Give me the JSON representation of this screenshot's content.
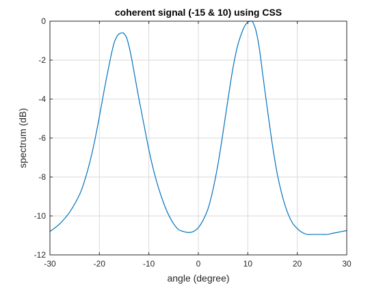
{
  "chart_data": {
    "type": "line",
    "title": "coherent signal (-15 & 10) using CSS",
    "xlabel": "angle (degree)",
    "ylabel": "spectrum (dB)",
    "xlim": [
      -30,
      30
    ],
    "ylim": [
      -12,
      0
    ],
    "xticks": [
      -30,
      -20,
      -10,
      0,
      10,
      20,
      30
    ],
    "yticks": [
      0,
      -2,
      -4,
      -6,
      -8,
      -10,
      -12
    ],
    "xtick_labels": [
      "-30",
      "-20",
      "-10",
      "0",
      "10",
      "20",
      "30"
    ],
    "ytick_labels": [
      "0",
      "-2",
      "-4",
      "-6",
      "-8",
      "-10",
      "-12"
    ],
    "grid": true,
    "line_color": "#0072BD",
    "series": [
      {
        "x": [
          -30,
          -28,
          -26,
          -24,
          -23,
          -22,
          -21,
          -20,
          -19,
          -18,
          -17.5,
          -17,
          -16.5,
          -16,
          -15.5,
          -15.2,
          -15,
          -14.5,
          -14,
          -13.5,
          -13,
          -12,
          -11,
          -10,
          -9,
          -8,
          -7,
          -6,
          -5,
          -4,
          -3,
          -2,
          -1,
          0,
          1,
          2,
          3,
          4,
          5,
          6,
          7,
          8,
          9,
          9.5,
          10,
          10.5,
          10.8,
          11,
          11.5,
          12,
          12.5,
          13,
          14,
          15,
          16,
          17,
          18,
          19,
          20,
          21,
          22,
          23,
          24,
          25,
          26,
          27,
          28,
          29,
          30
        ],
        "y": [
          -10.8,
          -10.4,
          -9.8,
          -8.9,
          -8.2,
          -7.3,
          -6.2,
          -4.9,
          -3.5,
          -2.2,
          -1.6,
          -1.1,
          -0.8,
          -0.65,
          -0.6,
          -0.6,
          -0.65,
          -0.85,
          -1.3,
          -1.9,
          -2.6,
          -4.0,
          -5.3,
          -6.6,
          -7.7,
          -8.6,
          -9.35,
          -9.95,
          -10.4,
          -10.7,
          -10.8,
          -10.85,
          -10.8,
          -10.6,
          -10.2,
          -9.6,
          -8.6,
          -7.3,
          -5.7,
          -4.0,
          -2.4,
          -1.2,
          -0.45,
          -0.2,
          -0.05,
          0.0,
          0.0,
          -0.05,
          -0.35,
          -0.9,
          -1.7,
          -2.7,
          -4.6,
          -6.4,
          -7.9,
          -9.0,
          -9.8,
          -10.35,
          -10.65,
          -10.85,
          -10.95,
          -10.95,
          -10.95,
          -10.95,
          -10.95,
          -10.9,
          -10.85,
          -10.8,
          -10.75
        ]
      }
    ]
  }
}
